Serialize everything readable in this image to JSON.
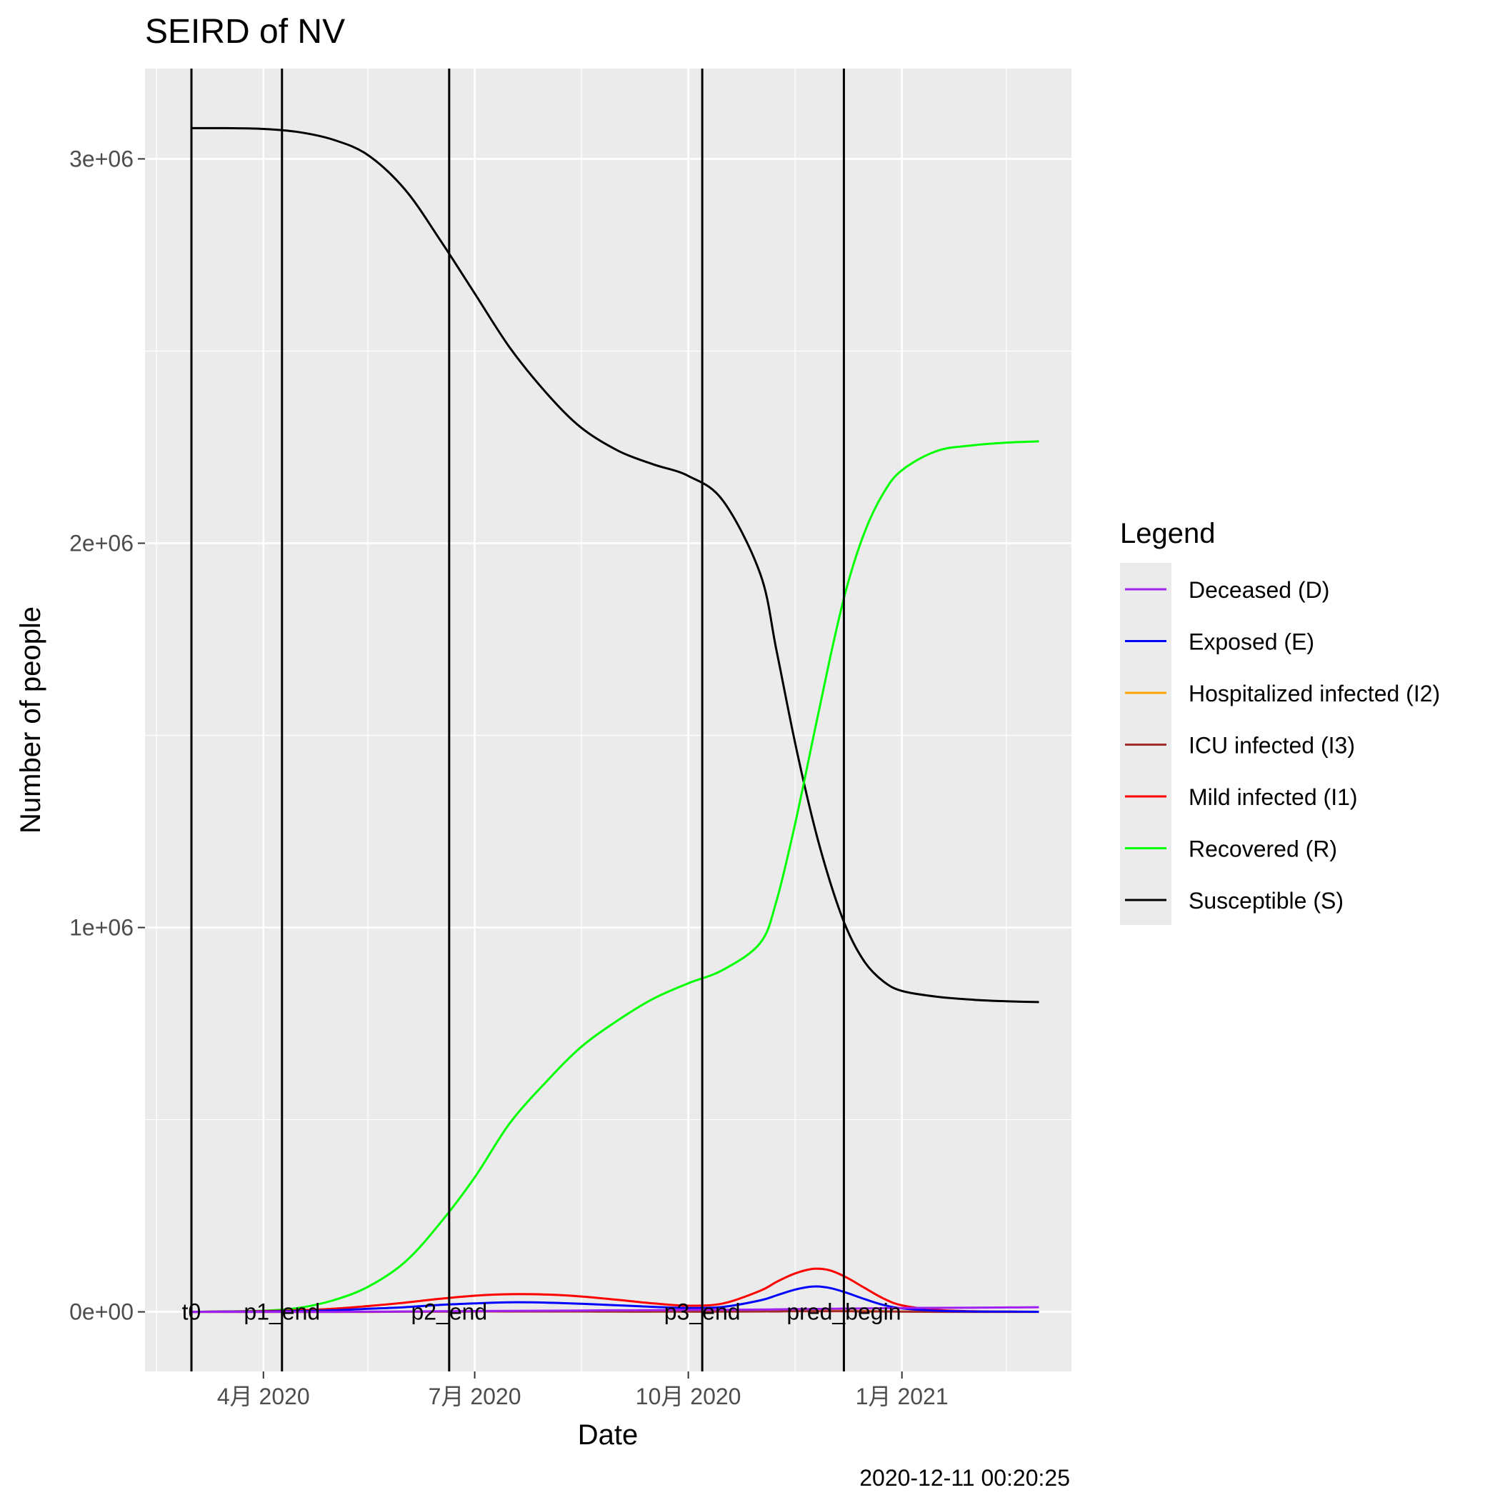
{
  "chart_data": {
    "type": "line",
    "title": "SEIRD of NV",
    "xlabel": "Date",
    "ylabel": "Number of people",
    "caption": "2020-12-11 00:20:25",
    "x_ticks": [
      {
        "date": "2020-04-01",
        "label": "4月 2020"
      },
      {
        "date": "2020-07-01",
        "label": "7月 2020"
      },
      {
        "date": "2020-10-01",
        "label": "10月 2020"
      },
      {
        "date": "2021-01-01",
        "label": "1月 2021"
      }
    ],
    "x_minor_ticks": [
      "2020-02-15",
      "2020-05-16",
      "2020-08-16",
      "2020-11-16",
      "2021-02-15"
    ],
    "xlim": [
      "2020-02-10",
      "2021-03-15"
    ],
    "y_ticks": [
      {
        "value": 0,
        "label": "0e+00"
      },
      {
        "value": 1000000,
        "label": "1e+06"
      },
      {
        "value": 2000000,
        "label": "2e+06"
      },
      {
        "value": 3000000,
        "label": "3e+06"
      }
    ],
    "y_minor_ticks": [
      500000,
      1500000,
      2500000
    ],
    "ylim": [
      -155000,
      3235000
    ],
    "grid": true,
    "legend_position": "right",
    "legend_title": "Legend",
    "vlines": [
      {
        "date": "2020-03-01",
        "label": "t0"
      },
      {
        "date": "2020-04-09",
        "label": "p1_end"
      },
      {
        "date": "2020-06-20",
        "label": "p2_end"
      },
      {
        "date": "2020-10-07",
        "label": "p3_end"
      },
      {
        "date": "2020-12-07",
        "label": "pred_begin"
      }
    ],
    "x": [
      "2020-03-01",
      "2020-03-16",
      "2020-04-01",
      "2020-04-16",
      "2020-05-01",
      "2020-05-16",
      "2020-06-01",
      "2020-06-16",
      "2020-07-01",
      "2020-07-16",
      "2020-08-01",
      "2020-08-16",
      "2020-09-01",
      "2020-09-16",
      "2020-10-01",
      "2020-10-16",
      "2020-11-01",
      "2020-11-08",
      "2020-11-16",
      "2020-11-24",
      "2020-12-01",
      "2020-12-08",
      "2020-12-16",
      "2020-12-24",
      "2021-01-01",
      "2021-01-16",
      "2021-02-01",
      "2021-02-16",
      "2021-03-01"
    ],
    "series": [
      {
        "name": "Deceased (D)",
        "color": "#A020F0",
        "values": [
          0,
          0,
          0,
          0,
          0,
          500,
          1000,
          1500,
          2000,
          2500,
          3000,
          3500,
          4000,
          4500,
          5000,
          5500,
          6000,
          6500,
          7000,
          7500,
          8000,
          8500,
          9000,
          9500,
          10000,
          10500,
          11000,
          11500,
          12000
        ]
      },
      {
        "name": "Exposed (E)",
        "color": "#0000FF",
        "values": [
          0,
          500,
          1000,
          2000,
          4000,
          8000,
          12000,
          18000,
          22000,
          25000,
          24000,
          21000,
          17000,
          13000,
          10000,
          13000,
          30000,
          43000,
          58000,
          66000,
          62000,
          50000,
          33000,
          18000,
          9000,
          3000,
          1000,
          500,
          200
        ]
      },
      {
        "name": "Hospitalized infected (I2)",
        "color": "#FFA500",
        "values": [
          0,
          0,
          0,
          0,
          0,
          0,
          500,
          1000,
          1500,
          1500,
          1500,
          1500,
          1000,
          1000,
          1000,
          1000,
          1500,
          2000,
          2500,
          3000,
          3000,
          2500,
          2000,
          1500,
          1000,
          500,
          0,
          0,
          0
        ]
      },
      {
        "name": "ICU infected (I3)",
        "color": "#A52A2A",
        "values": [
          0,
          0,
          0,
          0,
          0,
          0,
          500,
          500,
          1000,
          1000,
          1000,
          1000,
          500,
          500,
          500,
          500,
          1000,
          1000,
          1500,
          1500,
          1500,
          1500,
          1000,
          1000,
          500,
          0,
          0,
          0,
          0
        ]
      },
      {
        "name": "Mild infected (I1)",
        "color": "#FF0000",
        "values": [
          0,
          1000,
          2000,
          4000,
          8000,
          15000,
          24000,
          34000,
          42000,
          46000,
          45000,
          40000,
          31000,
          22000,
          16000,
          22000,
          55000,
          78000,
          100000,
          112000,
          108000,
          90000,
          62000,
          35000,
          17000,
          5000,
          1500,
          500,
          200
        ]
      },
      {
        "name": "Recovered (R)",
        "color": "#00FF00",
        "values": [
          0,
          1000,
          3000,
          10000,
          30000,
          65000,
          130000,
          230000,
          350000,
          490000,
          600000,
          690000,
          760000,
          815000,
          855000,
          890000,
          960000,
          1070000,
          1270000,
          1500000,
          1700000,
          1880000,
          2030000,
          2130000,
          2190000,
          2240000,
          2255000,
          2262000,
          2265000
        ]
      },
      {
        "name": "Susceptible (S)",
        "color": "#000000",
        "values": [
          3080000,
          3080000,
          3078000,
          3070000,
          3050000,
          3010000,
          2920000,
          2790000,
          2650000,
          2510000,
          2390000,
          2300000,
          2240000,
          2205000,
          2175000,
          2110000,
          1920000,
          1720000,
          1480000,
          1270000,
          1120000,
          1000000,
          910000,
          860000,
          835000,
          820000,
          812000,
          808000,
          806000
        ]
      }
    ]
  }
}
